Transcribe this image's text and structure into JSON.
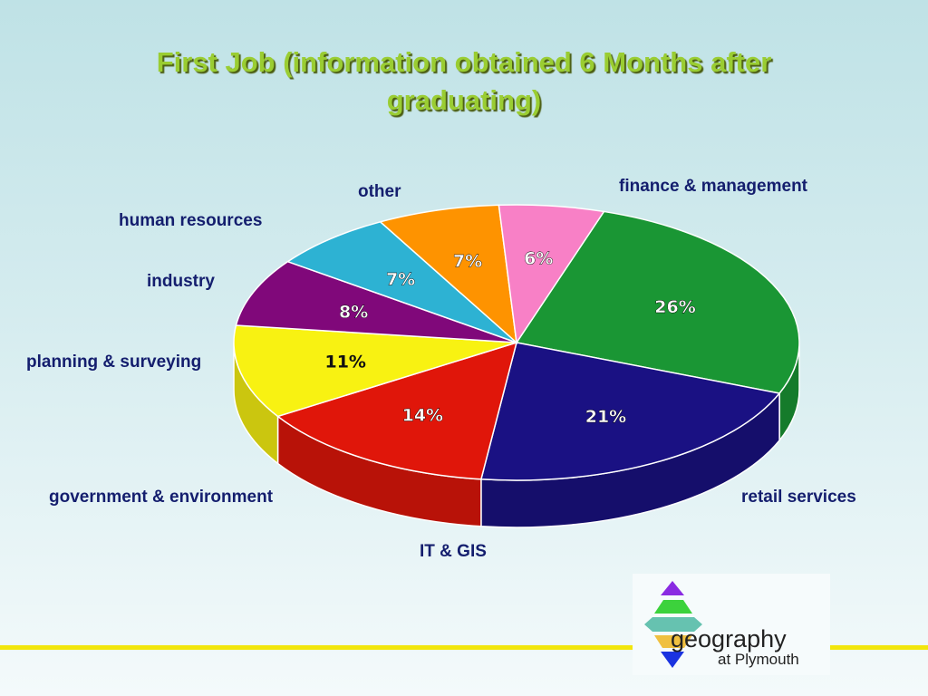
{
  "title": "First Job (information obtained 6 Months after graduating)",
  "chart_data": {
    "type": "pie",
    "title": "First Job (information obtained 6 Months after graduating)",
    "categories": [
      "finance & management",
      "retail services",
      "IT & GIS",
      "government & environment",
      "planning & surveying",
      "industry",
      "human resources",
      "other"
    ],
    "values": [
      26,
      21,
      14,
      11,
      8,
      7,
      7,
      6
    ],
    "value_labels": [
      "26%",
      "21%",
      "14%",
      "11%",
      "8%",
      "7%",
      "7%",
      "6%"
    ],
    "colors": [
      "#1a9634",
      "#1a1183",
      "#e0160a",
      "#f8f212",
      "#80087a",
      "#2db2d3",
      "#fe9300",
      "#f880c6"
    ],
    "style": "3d-exploded-free"
  },
  "logo": {
    "word": "geography",
    "sub": "at Plymouth",
    "colors": [
      "#8a2be2",
      "#3cd23c",
      "#66c2b0",
      "#f0c040",
      "#1a33e0"
    ]
  },
  "footer_line_color": "#f2e60c"
}
